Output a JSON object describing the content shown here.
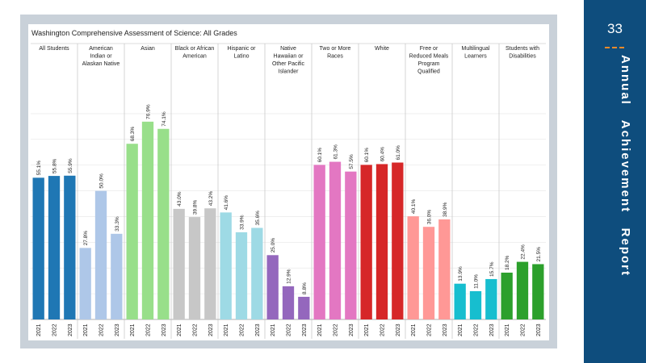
{
  "page": {
    "number": "33",
    "side_title": "Annual   Achievement   Report"
  },
  "colors": {
    "sidebar": "#0e4d7d",
    "accent_dash": "#f08a2a",
    "frame": "#c9d1d9"
  },
  "chart_data": {
    "type": "bar",
    "title": "Washington Comprehensive Assessment of Science:  All Grades",
    "ylim": [
      0,
      85
    ],
    "grid": true,
    "groups": [
      {
        "label": [
          "All Students"
        ],
        "color": "#1f77b4",
        "years": [
          "2021",
          "2022",
          "2023"
        ],
        "values": [
          55.1,
          55.8,
          55.9
        ],
        "labels": [
          "55.1%",
          "55.8%",
          "55.9%"
        ]
      },
      {
        "label": [
          "American",
          "Indian or",
          "Alaskan Native"
        ],
        "color": "#aec7e8",
        "years": [
          "2021",
          "2022",
          "2023"
        ],
        "values": [
          27.8,
          50.0,
          33.3
        ],
        "labels": [
          "27.8%",
          "50.0%",
          "33.3%"
        ]
      },
      {
        "label": [
          "Asian"
        ],
        "color": "#98df8a",
        "years": [
          "2021",
          "2022",
          "2023"
        ],
        "values": [
          68.3,
          76.9,
          74.1
        ],
        "labels": [
          "68.3%",
          "76.9%",
          "74.1%"
        ]
      },
      {
        "label": [
          "Black or African",
          "American"
        ],
        "color": "#c7c7c7",
        "years": [
          "2021",
          "2022",
          "2023"
        ],
        "values": [
          43.0,
          39.8,
          43.2
        ],
        "labels": [
          "43.0%",
          "39.8%",
          "43.2%"
        ]
      },
      {
        "label": [
          "Hispanic or",
          "Latino"
        ],
        "color": "#9edae5",
        "years": [
          "2021",
          "2022",
          "2023"
        ],
        "values": [
          41.6,
          33.9,
          35.6
        ],
        "labels": [
          "41.6%",
          "33.9%",
          "35.6%"
        ]
      },
      {
        "label": [
          "Native",
          "Hawaiian or",
          "Other Pacific",
          "Islander"
        ],
        "color": "#9467bd",
        "years": [
          "2021",
          "2022",
          "2023"
        ],
        "values": [
          25.0,
          12.9,
          8.8
        ],
        "labels": [
          "25.0%",
          "12.9%",
          "8.8%"
        ]
      },
      {
        "label": [
          "Two or More",
          "Races"
        ],
        "color": "#e377c2",
        "years": [
          "2021",
          "2022",
          "2023"
        ],
        "values": [
          60.1,
          61.3,
          57.5
        ],
        "labels": [
          "60.1%",
          "61.3%",
          "57.5%"
        ]
      },
      {
        "label": [
          "White"
        ],
        "color": "#d62728",
        "years": [
          "2021",
          "2022",
          "2023"
        ],
        "values": [
          60.1,
          60.4,
          61.0
        ],
        "labels": [
          "60.1%",
          "60.4%",
          "61.0%"
        ]
      },
      {
        "label": [
          "Free or",
          "Reduced Meals",
          "Program",
          "Qualified"
        ],
        "color": "#ff9896",
        "years": [
          "2021",
          "2022",
          "2023"
        ],
        "values": [
          40.1,
          36.0,
          38.9
        ],
        "labels": [
          "40.1%",
          "36.0%",
          "38.9%"
        ]
      },
      {
        "label": [
          "Multilingual",
          "Learners"
        ],
        "color": "#17becf",
        "years": [
          "2021",
          "2022",
          "2023"
        ],
        "values": [
          13.9,
          11.0,
          15.7
        ],
        "labels": [
          "13.9%",
          "11.0%",
          "15.7%"
        ]
      },
      {
        "label": [
          "Students with",
          "Disabilities"
        ],
        "color": "#2ca02c",
        "years": [
          "2021",
          "2022",
          "2023"
        ],
        "values": [
          18.2,
          22.4,
          21.5
        ],
        "labels": [
          "18.2%",
          "22.4%",
          "21.5%"
        ]
      }
    ]
  }
}
